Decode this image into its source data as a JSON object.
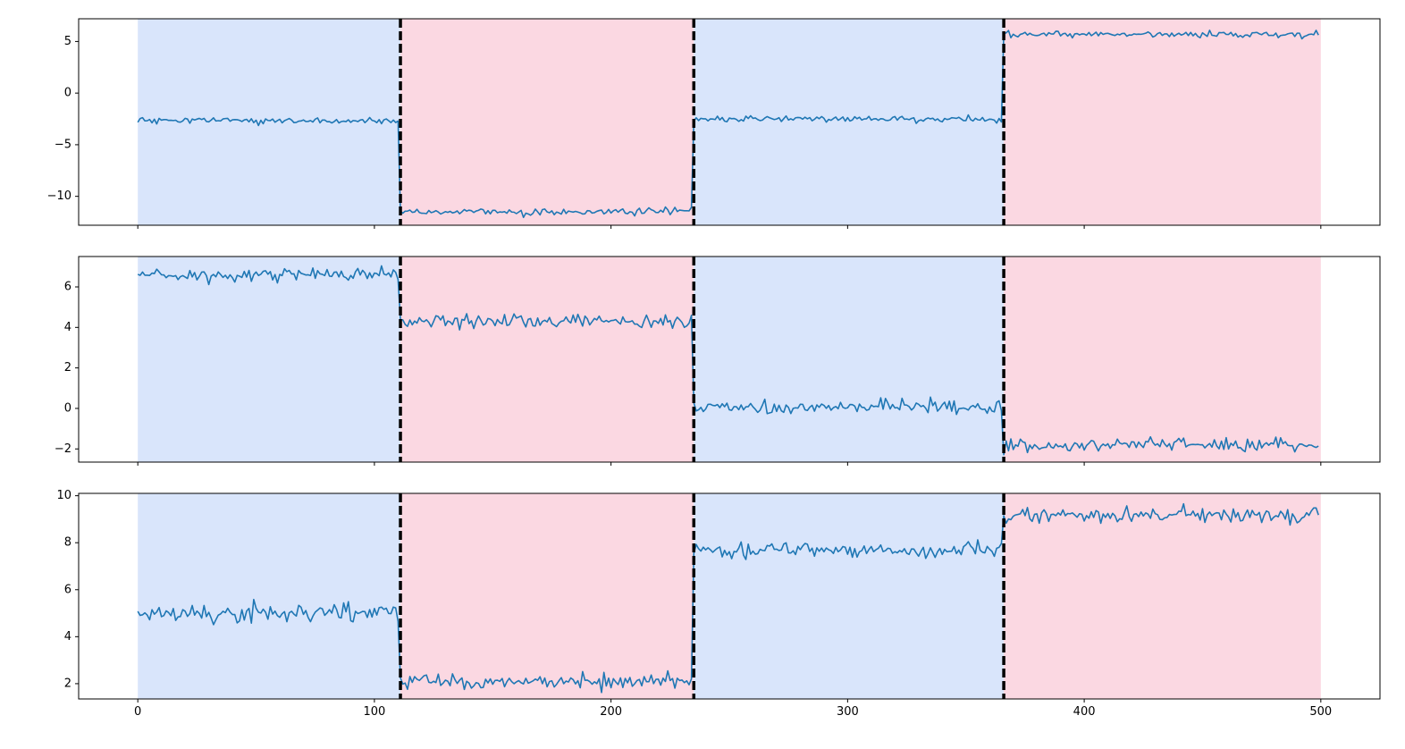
{
  "chart_data": {
    "type": "line",
    "title": "",
    "xlabel": "",
    "n_samples": 500,
    "xlim": [
      -25,
      525
    ],
    "x_ticks": [
      0,
      100,
      200,
      300,
      400,
      500
    ],
    "x_tick_labels": [
      "0",
      "100",
      "200",
      "300",
      "400",
      "500"
    ],
    "breakpoints": [
      111,
      235,
      366
    ],
    "segments": [
      {
        "start": 0,
        "end": 111,
        "shade": "blue"
      },
      {
        "start": 111,
        "end": 235,
        "shade": "pink"
      },
      {
        "start": 235,
        "end": 366,
        "shade": "blue"
      },
      {
        "start": 366,
        "end": 500,
        "shade": "pink"
      }
    ],
    "grid": false,
    "legend": "none",
    "colors": {
      "line": "#1f77b4",
      "shade_blue": "#d9e5fb",
      "shade_pink": "#fbd8e2",
      "breakpoint": "#000000"
    },
    "subplots": [
      {
        "ylim": [
          -12.8,
          7.2
        ],
        "y_ticks": [
          5,
          0,
          -5,
          -10
        ],
        "y_tick_labels": [
          "5",
          "0",
          "−5",
          "−10"
        ],
        "segment_means": [
          -2.7,
          -11.5,
          -2.5,
          5.7
        ],
        "noise": 0.15
      },
      {
        "ylim": [
          -2.65,
          7.5
        ],
        "y_ticks": [
          6,
          4,
          2,
          0,
          -2
        ],
        "y_tick_labels": [
          "6",
          "4",
          "2",
          "0",
          "−2"
        ],
        "segment_means": [
          6.6,
          4.3,
          0.05,
          -1.8
        ],
        "noise": 0.16
      },
      {
        "ylim": [
          1.35,
          10.1
        ],
        "y_ticks": [
          10,
          8,
          6,
          4,
          2
        ],
        "y_tick_labels": [
          "10",
          "8",
          "6",
          "4",
          "2"
        ],
        "segment_means": [
          5.0,
          2.1,
          7.7,
          9.2
        ],
        "noise": 0.18
      }
    ]
  }
}
